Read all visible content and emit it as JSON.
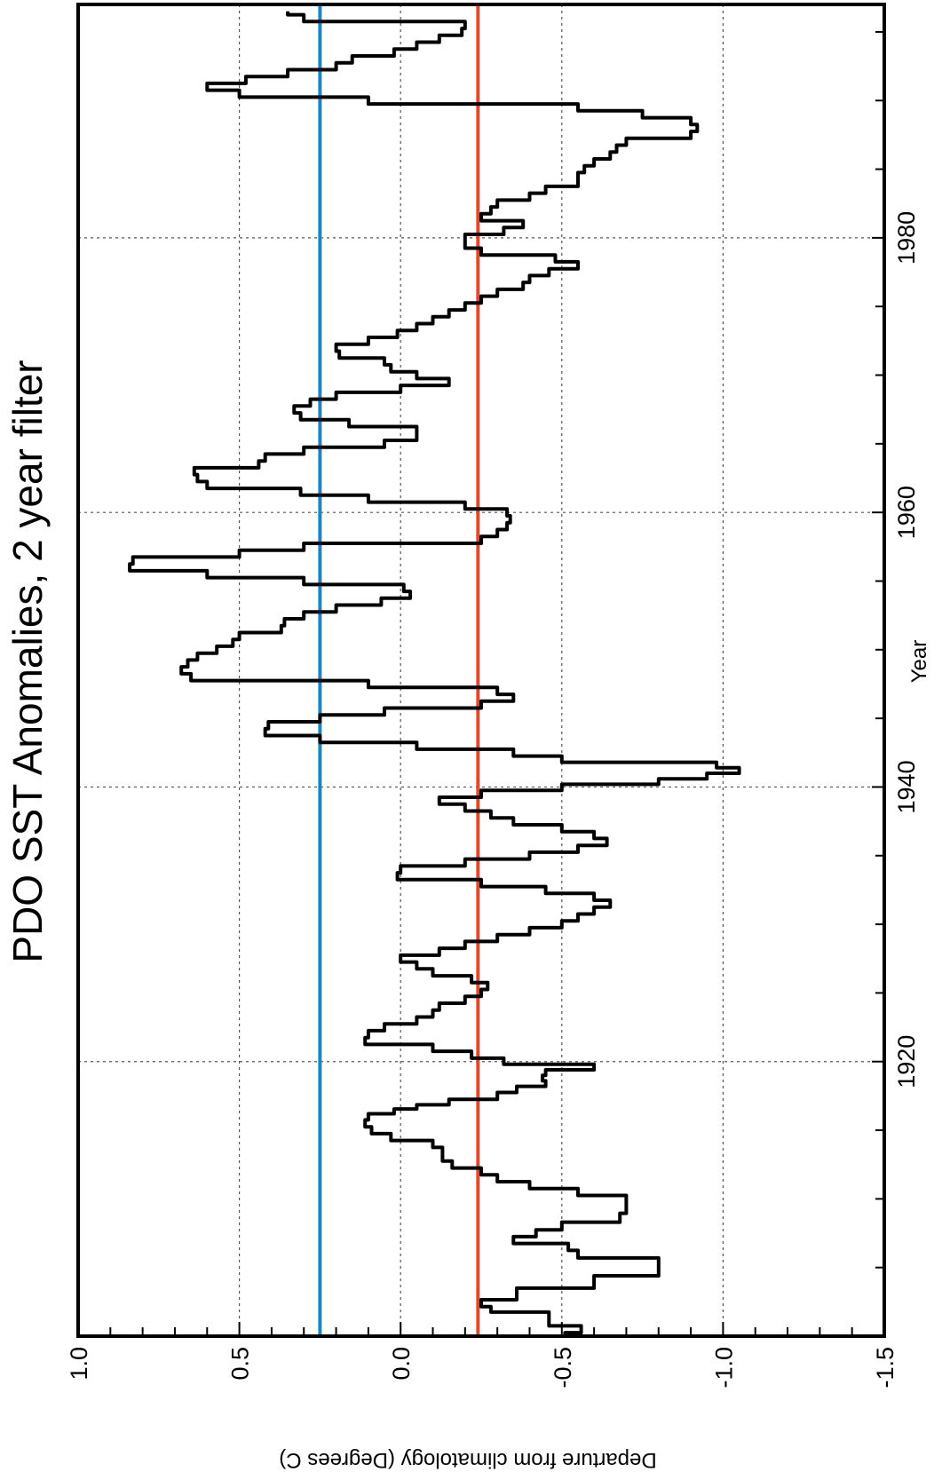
{
  "chart_data": {
    "type": "line",
    "title": "PDO SST Anomalies, 2 year filter",
    "xlabel": "Year",
    "ylabel": "Departure from climatology (Degrees C)",
    "xlim": [
      1900,
      1997
    ],
    "ylim": [
      -1.5,
      1.0
    ],
    "x_tick_labels": [
      "1920",
      "1940",
      "1960",
      "1980"
    ],
    "y_tick_labels": [
      "1.0",
      "0.5",
      "0.0",
      "-0.5",
      "-1.0",
      "-1.5"
    ],
    "grid": true,
    "orientation": "rotated 90 degrees clockwise (time runs bottom to top)",
    "series": [
      {
        "color": "#000000",
        "x": [
          1900.0,
          1900.5,
          1901.0,
          1901.5,
          1902.0,
          1902.3,
          1903.0,
          1904.0,
          1904.8,
          1905.4,
          1906.0,
          1906.5,
          1907.0,
          1907.5,
          1908.0,
          1908.6,
          1909.3,
          1910.0,
          1910.5,
          1911.0,
          1911.5,
          1912.0,
          1912.5,
          1913.0,
          1913.5,
          1914.0,
          1914.5,
          1915.0,
          1915.5,
          1916.0,
          1916.4,
          1916.7,
          1917.0,
          1917.5,
          1918.0,
          1918.4,
          1918.8,
          1919.2,
          1919.6,
          1920.0,
          1920.5,
          1921.0,
          1921.5,
          1922.0,
          1922.5,
          1923.0,
          1923.5,
          1924.0,
          1924.5,
          1925.0,
          1925.5,
          1926.0,
          1926.5,
          1927.0,
          1927.5,
          1928.0,
          1928.5,
          1929.0,
          1929.5,
          1930.0,
          1930.5,
          1931.0,
          1931.5,
          1932.0,
          1932.5,
          1933.0,
          1933.5,
          1934.0,
          1934.5,
          1935.0,
          1935.5,
          1936.0,
          1936.5,
          1937.0,
          1937.5,
          1938.0,
          1938.5,
          1939.0,
          1939.5,
          1940.0,
          1940.4,
          1940.8,
          1941.2,
          1941.6,
          1942.0,
          1942.5,
          1943.0,
          1943.5,
          1944.0,
          1944.5,
          1945.0,
          1945.5,
          1946.0,
          1946.5,
          1947.0,
          1947.5,
          1948.0,
          1948.5,
          1949.0,
          1949.5,
          1950.0,
          1950.5,
          1951.0,
          1951.5,
          1952.0,
          1952.5,
          1953.0,
          1953.5,
          1954.0,
          1954.5,
          1955.0,
          1955.5,
          1956.0,
          1956.5,
          1957.0,
          1957.5,
          1958.0,
          1958.5,
          1959.0,
          1959.5,
          1960.0,
          1960.5,
          1961.0,
          1961.5,
          1962.0,
          1962.5,
          1963.0,
          1963.5,
          1964.0,
          1964.5,
          1965.0,
          1965.5,
          1966.0,
          1966.5,
          1967.0,
          1967.5,
          1968.0,
          1968.5,
          1969.0,
          1969.5,
          1970.0,
          1970.5,
          1971.0,
          1971.5,
          1972.0,
          1972.5,
          1973.0,
          1973.5,
          1974.0,
          1974.5,
          1975.0,
          1975.5,
          1976.0,
          1976.5,
          1977.0,
          1977.5,
          1978.0,
          1978.5,
          1979.0,
          1979.5,
          1980.0,
          1980.5,
          1981.0,
          1981.5,
          1982.0,
          1982.5,
          1983.0,
          1983.5,
          1984.0,
          1984.5,
          1985.0,
          1985.5,
          1986.0,
          1986.5,
          1987.0,
          1987.5,
          1988.0,
          1988.5,
          1989.0,
          1989.5,
          1990.0,
          1990.5,
          1991.0,
          1991.5,
          1992.0,
          1992.5,
          1993.0,
          1993.5,
          1994.0,
          1994.5,
          1995.0,
          1995.5,
          1996.0,
          1996.5
        ],
        "y": [
          -0.51,
          -0.56,
          -0.46,
          -0.46,
          -0.28,
          -0.25,
          -0.36,
          -0.6,
          -0.8,
          -0.8,
          -0.55,
          -0.52,
          -0.35,
          -0.42,
          -0.5,
          -0.68,
          -0.7,
          -0.7,
          -0.55,
          -0.4,
          -0.3,
          -0.25,
          -0.16,
          -0.13,
          -0.13,
          -0.1,
          0.03,
          0.09,
          0.11,
          0.1,
          0.02,
          -0.05,
          -0.15,
          -0.3,
          -0.36,
          -0.45,
          -0.44,
          -0.45,
          -0.6,
          -0.32,
          -0.22,
          -0.1,
          0.11,
          0.1,
          0.05,
          -0.05,
          -0.1,
          -0.12,
          -0.2,
          -0.25,
          -0.27,
          -0.22,
          -0.1,
          -0.05,
          0.0,
          -0.12,
          -0.2,
          -0.3,
          -0.4,
          -0.5,
          -0.55,
          -0.6,
          -0.65,
          -0.6,
          -0.45,
          -0.25,
          0.01,
          0.0,
          -0.2,
          -0.4,
          -0.55,
          -0.64,
          -0.6,
          -0.5,
          -0.35,
          -0.28,
          -0.2,
          -0.12,
          -0.25,
          -0.5,
          -0.8,
          -0.95,
          -1.05,
          -0.98,
          -0.5,
          -0.35,
          -0.05,
          0.25,
          0.42,
          0.41,
          0.25,
          0.05,
          -0.25,
          -0.35,
          -0.3,
          0.1,
          0.65,
          0.68,
          0.66,
          0.63,
          0.57,
          0.52,
          0.5,
          0.37,
          0.36,
          0.3,
          0.2,
          0.06,
          -0.03,
          -0.01,
          0.3,
          0.6,
          0.84,
          0.83,
          0.5,
          0.3,
          -0.25,
          -0.3,
          -0.33,
          -0.34,
          -0.33,
          -0.2,
          0.1,
          0.31,
          0.6,
          0.63,
          0.64,
          0.44,
          0.42,
          0.3,
          0.05,
          -0.05,
          -0.05,
          0.16,
          0.31,
          0.33,
          0.28,
          0.2,
          0.0,
          -0.15,
          -0.05,
          0.03,
          0.05,
          0.19,
          0.2,
          0.1,
          0.01,
          -0.05,
          -0.1,
          -0.15,
          -0.2,
          -0.25,
          -0.3,
          -0.38,
          -0.4,
          -0.46,
          -0.55,
          -0.48,
          -0.25,
          -0.2,
          -0.2,
          -0.32,
          -0.38,
          -0.25,
          -0.28,
          -0.3,
          -0.4,
          -0.45,
          -0.55,
          -0.55,
          -0.57,
          -0.6,
          -0.65,
          -0.67,
          -0.7,
          -0.9,
          -0.92,
          -0.9,
          -0.75,
          -0.55,
          0.1,
          0.5,
          0.6,
          0.48,
          0.35,
          0.2,
          0.15,
          0.02,
          -0.05,
          -0.12,
          -0.19,
          -0.2,
          0.3,
          0.35
        ]
      }
    ],
    "reference_lines": [
      {
        "color": "#1a86c2",
        "value": 0.25
      },
      {
        "color": "#e14a25",
        "value": -0.24
      }
    ]
  }
}
